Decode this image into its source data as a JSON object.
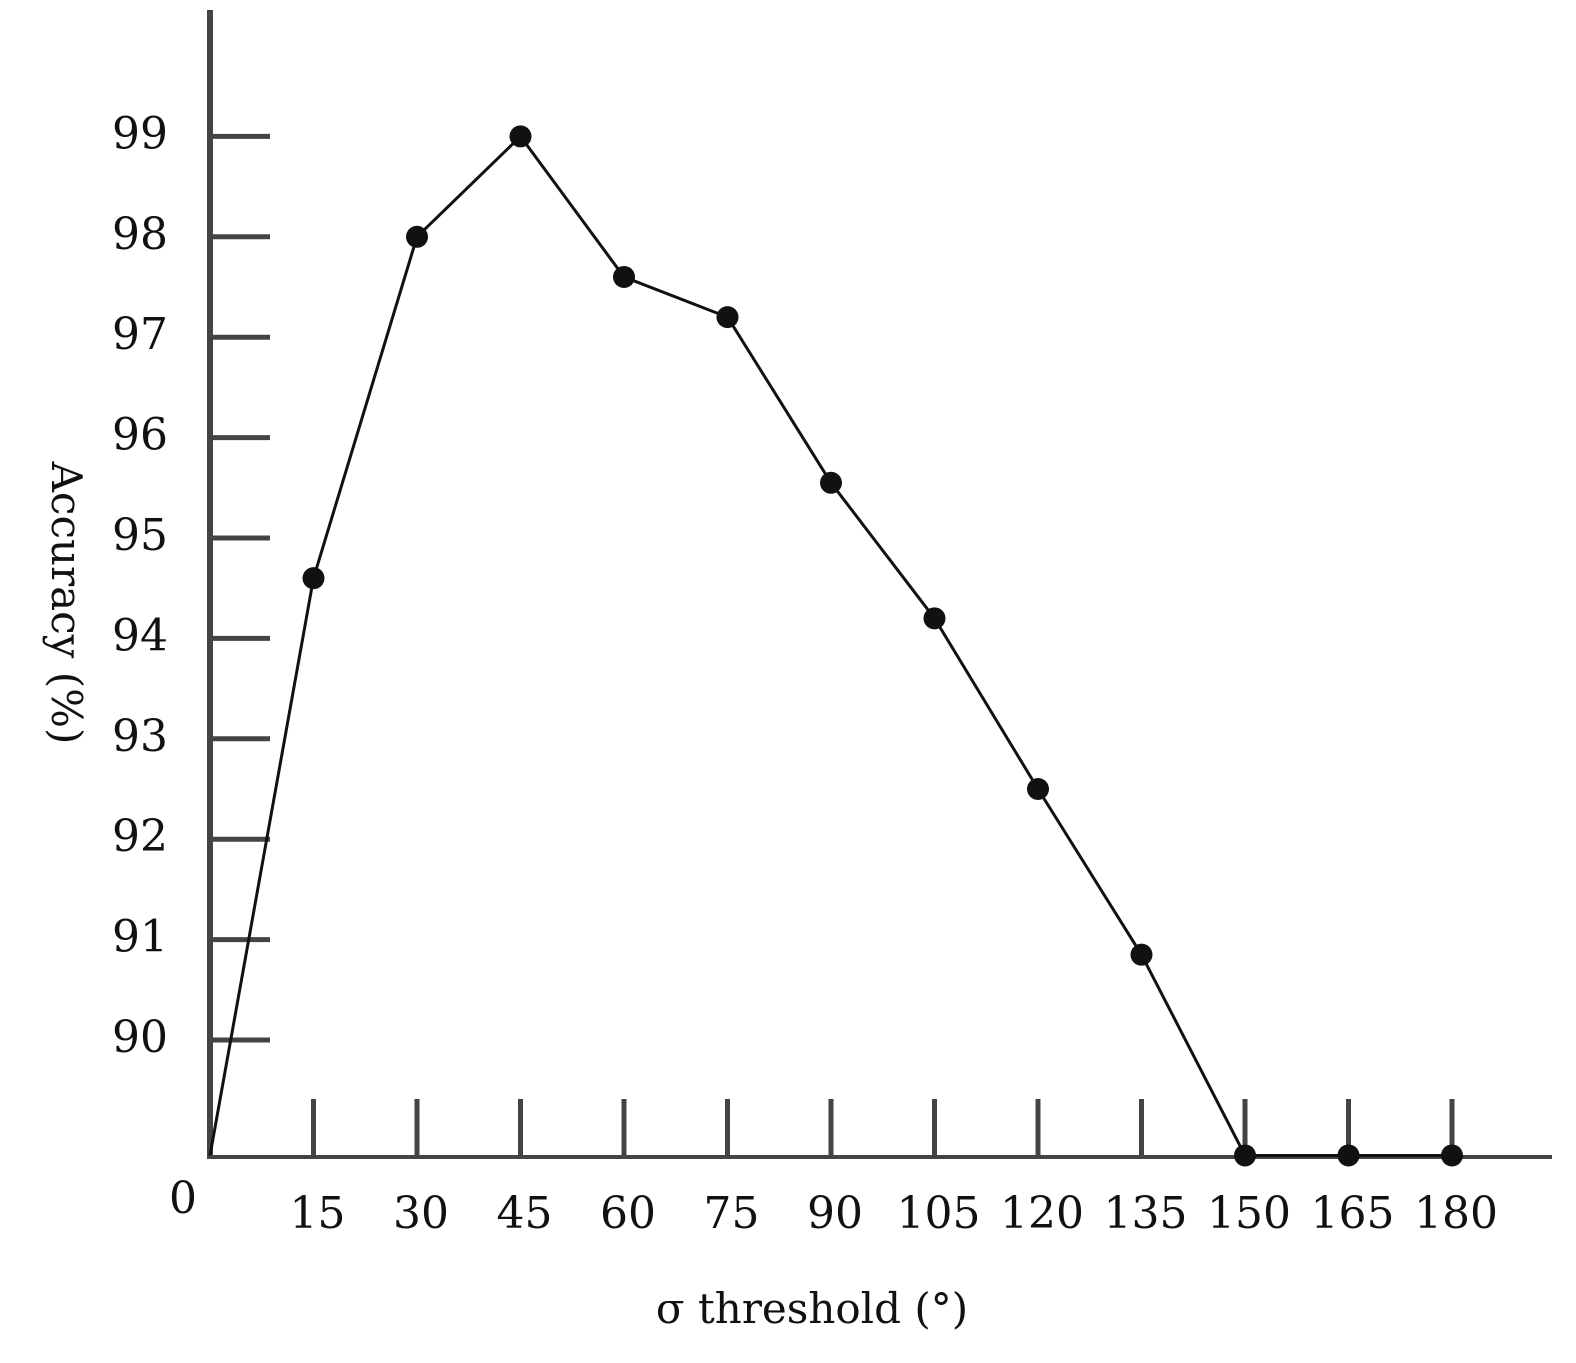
{
  "chart_data": {
    "type": "line",
    "xlabel": "σ threshold (°)",
    "ylabel": "Accuracy (%)",
    "origin_label": "0",
    "x": [
      0,
      15,
      30,
      45,
      60,
      75,
      90,
      105,
      120,
      135,
      150,
      165,
      180
    ],
    "x_tick_labels": [
      "15",
      "30",
      "45",
      "60",
      "75",
      "90",
      "105",
      "120",
      "135",
      "150",
      "165",
      "180"
    ],
    "y_tick_labels": [
      "90",
      "91",
      "92",
      "93",
      "94",
      "95",
      "96",
      "97",
      "98",
      "99"
    ],
    "y_ticks": [
      90,
      91,
      92,
      93,
      94,
      95,
      96,
      97,
      98,
      99
    ],
    "series": [
      {
        "values": [
          88.85,
          94.6,
          98.0,
          99.0,
          97.6,
          97.2,
          95.55,
          94.2,
          92.5,
          90.85,
          88.85,
          88.85,
          88.85
        ],
        "marker_from_index": 1
      }
    ],
    "xlim": [
      0,
      195
    ],
    "ylim": [
      88.85,
      100.3
    ],
    "grid": false,
    "colors": {
      "line": "#111111",
      "marker": "#111111",
      "axis": "#444444",
      "tick_text": "#111111",
      "label_accent": "#c07a1a"
    }
  }
}
